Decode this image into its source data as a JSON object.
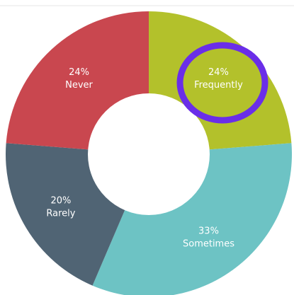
{
  "chart_data": {
    "type": "donut",
    "categories": [
      "Frequently",
      "Sometimes",
      "Rarely",
      "Never"
    ],
    "values": [
      24,
      33,
      20,
      24
    ],
    "value_labels": [
      "24%",
      "33%",
      "20%",
      "24%"
    ],
    "colors": [
      "#b3c12b",
      "#6dc3c4",
      "#506474",
      "#c9474f"
    ]
  }
}
